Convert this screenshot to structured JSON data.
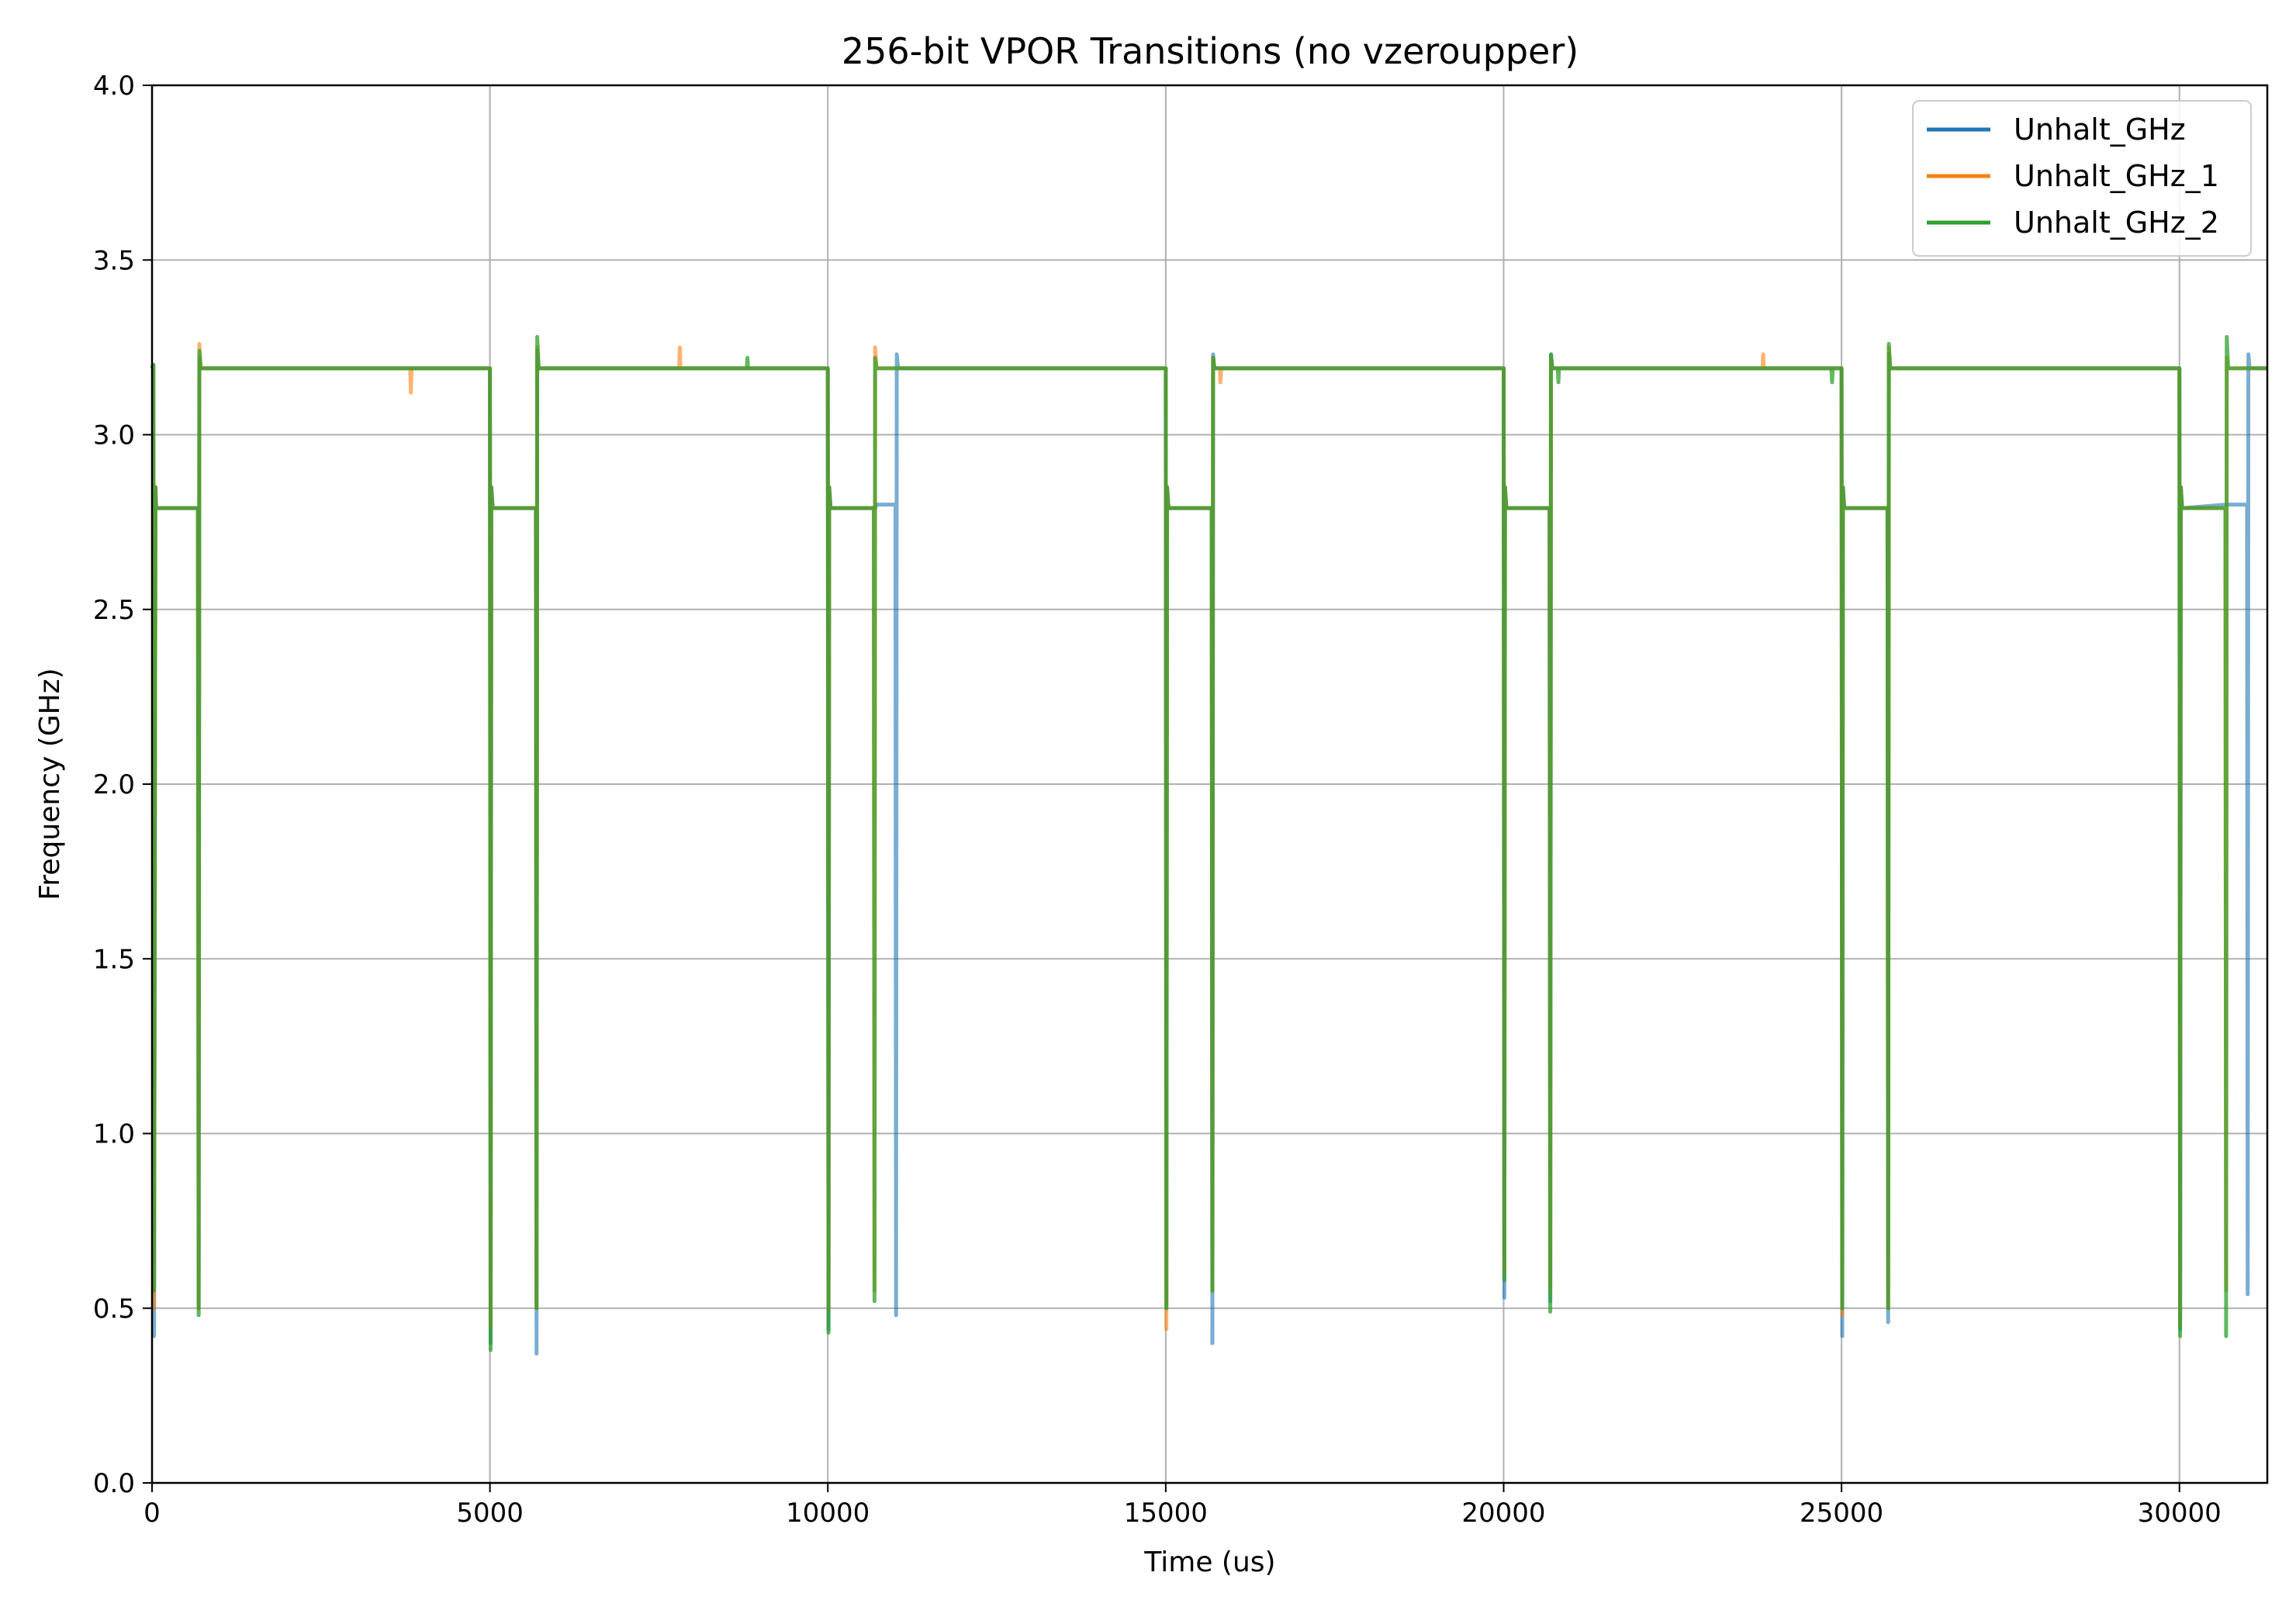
{
  "chart_data": {
    "type": "line",
    "title": "256-bit VPOR Transitions (no vzeroupper)",
    "xlabel": "Time (us)",
    "ylabel": "Frequency (GHz)",
    "xlim": [
      0,
      31300
    ],
    "ylim": [
      0,
      4.0
    ],
    "xticks": [
      0,
      5000,
      10000,
      15000,
      20000,
      25000,
      30000
    ],
    "xtick_labels": [
      "0",
      "5000",
      "10000",
      "15000",
      "20000",
      "25000",
      "30000"
    ],
    "yticks": [
      0,
      0.5,
      1.0,
      1.5,
      2.0,
      2.5,
      3.0,
      3.5,
      4.0
    ],
    "ytick_labels": [
      "0.0",
      "0.5",
      "1.0",
      "1.5",
      "2.0",
      "2.5",
      "3.0",
      "3.5",
      "4.0"
    ],
    "grid": true,
    "legend_position": "top-right",
    "series": [
      {
        "name": "Unhalt_GHz",
        "color": "#1f77b4",
        "x": [
          0,
          20,
          30,
          50,
          60,
          80,
          680,
          690,
          700,
          720,
          735,
          750,
          5000,
          5010,
          5020,
          5040,
          5060,
          5680,
          5690,
          5700,
          5720,
          5740,
          10000,
          10010,
          10020,
          10040,
          10060,
          10680,
          10700,
          10720,
          11000,
          11010,
          11020,
          11040,
          11060,
          15000,
          15010,
          15020,
          15040,
          15060,
          15680,
          15690,
          15700,
          15720,
          15740,
          20000,
          20010,
          20020,
          20040,
          20060,
          20680,
          20690,
          20700,
          20720,
          20740,
          25000,
          25010,
          25020,
          25040,
          25060,
          25680,
          25690,
          25700,
          25720,
          25740,
          30000,
          30010,
          30020,
          30040,
          30060,
          30690,
          30700,
          30720,
          31000,
          31010,
          31020,
          31040,
          31060,
          31300
        ],
        "y": [
          3.19,
          3.2,
          0.42,
          2.85,
          2.79,
          2.79,
          2.79,
          0.5,
          3.22,
          3.19,
          3.19,
          3.19,
          3.19,
          0.4,
          2.85,
          2.79,
          2.79,
          2.79,
          0.37,
          3.24,
          3.19,
          3.19,
          3.19,
          0.44,
          2.85,
          2.79,
          2.79,
          2.79,
          2.79,
          2.8,
          2.8,
          0.48,
          3.23,
          3.19,
          3.19,
          3.19,
          0.5,
          2.85,
          2.79,
          2.79,
          2.79,
          0.4,
          3.23,
          3.19,
          3.19,
          3.19,
          0.53,
          2.85,
          2.79,
          2.79,
          2.79,
          0.52,
          3.23,
          3.19,
          3.19,
          3.19,
          0.42,
          2.85,
          2.79,
          2.79,
          2.79,
          0.46,
          3.23,
          3.19,
          3.19,
          3.19,
          0.44,
          2.85,
          2.79,
          2.79,
          2.8,
          2.8,
          2.8,
          2.8,
          0.54,
          3.23,
          3.19,
          3.19,
          3.19
        ]
      },
      {
        "name": "Unhalt_GHz_1",
        "color": "#ff7f0e",
        "x": [
          0,
          20,
          30,
          50,
          60,
          80,
          680,
          690,
          700,
          720,
          735,
          750,
          3820,
          3830,
          3840,
          5000,
          5010,
          5020,
          5040,
          5060,
          5680,
          5690,
          5700,
          5720,
          5740,
          7800,
          7810,
          7820,
          10000,
          10010,
          10020,
          10040,
          10060,
          10680,
          10690,
          10700,
          10720,
          10740,
          15000,
          15010,
          15020,
          15040,
          15060,
          15680,
          15690,
          15700,
          15720,
          15740,
          15800,
          15810,
          15820,
          20000,
          20010,
          20020,
          20040,
          20060,
          20680,
          20690,
          20700,
          20720,
          20740,
          23830,
          23840,
          23850,
          25000,
          25010,
          25020,
          25040,
          25060,
          25680,
          25690,
          25700,
          25720,
          25740,
          30000,
          30010,
          30020,
          30040,
          30060,
          30680,
          30690,
          30700,
          30720,
          30740,
          31300
        ],
        "y": [
          3.19,
          3.2,
          0.5,
          2.85,
          2.79,
          2.79,
          2.79,
          0.5,
          3.26,
          3.19,
          3.19,
          3.19,
          3.19,
          3.12,
          3.19,
          3.19,
          0.45,
          2.85,
          2.79,
          2.79,
          2.79,
          0.5,
          3.25,
          3.19,
          3.19,
          3.19,
          3.25,
          3.19,
          3.19,
          0.5,
          2.85,
          2.79,
          2.79,
          2.79,
          0.55,
          3.25,
          3.19,
          3.19,
          3.19,
          0.44,
          2.85,
          2.79,
          2.79,
          2.79,
          0.55,
          3.22,
          3.19,
          3.19,
          3.19,
          3.15,
          3.19,
          3.19,
          0.6,
          2.85,
          2.79,
          2.79,
          2.79,
          0.55,
          3.22,
          3.19,
          3.19,
          3.19,
          3.23,
          3.19,
          3.19,
          0.48,
          2.85,
          2.79,
          2.79,
          2.79,
          0.5,
          3.25,
          3.19,
          3.19,
          3.19,
          0.45,
          2.85,
          2.79,
          2.79,
          2.79,
          0.55,
          3.22,
          3.19,
          3.19,
          3.19
        ]
      },
      {
        "name": "Unhalt_GHz_2",
        "color": "#2ca02c",
        "x": [
          0,
          20,
          30,
          50,
          60,
          80,
          680,
          690,
          700,
          720,
          735,
          750,
          5000,
          5010,
          5020,
          5040,
          5060,
          5680,
          5690,
          5700,
          5720,
          5740,
          8800,
          8810,
          8820,
          10000,
          10010,
          10020,
          10040,
          10060,
          10680,
          10690,
          10700,
          10720,
          10740,
          15000,
          15010,
          15020,
          15040,
          15060,
          15680,
          15690,
          15700,
          15720,
          15740,
          20000,
          20010,
          20020,
          20040,
          20060,
          20680,
          20690,
          20700,
          20720,
          20740,
          20800,
          20810,
          20820,
          24850,
          24860,
          24870,
          25000,
          25010,
          25020,
          25040,
          25060,
          25680,
          25690,
          25700,
          25720,
          25740,
          30000,
          30010,
          30020,
          30040,
          30060,
          30680,
          30690,
          30700,
          30720,
          30740,
          31300
        ],
        "y": [
          3.19,
          3.2,
          0.55,
          2.85,
          2.79,
          2.79,
          2.79,
          0.48,
          3.24,
          3.19,
          3.19,
          3.19,
          3.19,
          0.38,
          2.85,
          2.79,
          2.79,
          2.79,
          0.5,
          3.28,
          3.19,
          3.19,
          3.19,
          3.22,
          3.19,
          3.19,
          0.43,
          2.85,
          2.79,
          2.79,
          2.79,
          0.52,
          3.22,
          3.19,
          3.19,
          3.19,
          0.5,
          2.85,
          2.79,
          2.79,
          2.79,
          0.55,
          3.22,
          3.19,
          3.19,
          3.19,
          0.58,
          2.85,
          2.79,
          2.79,
          2.79,
          0.49,
          3.23,
          3.19,
          3.19,
          3.19,
          3.15,
          3.19,
          3.19,
          3.15,
          3.19,
          3.19,
          0.5,
          2.85,
          2.79,
          2.79,
          2.79,
          0.5,
          3.26,
          3.19,
          3.19,
          3.19,
          0.42,
          2.85,
          2.79,
          2.79,
          2.79,
          0.42,
          3.28,
          3.19,
          3.19,
          3.19
        ]
      }
    ]
  }
}
